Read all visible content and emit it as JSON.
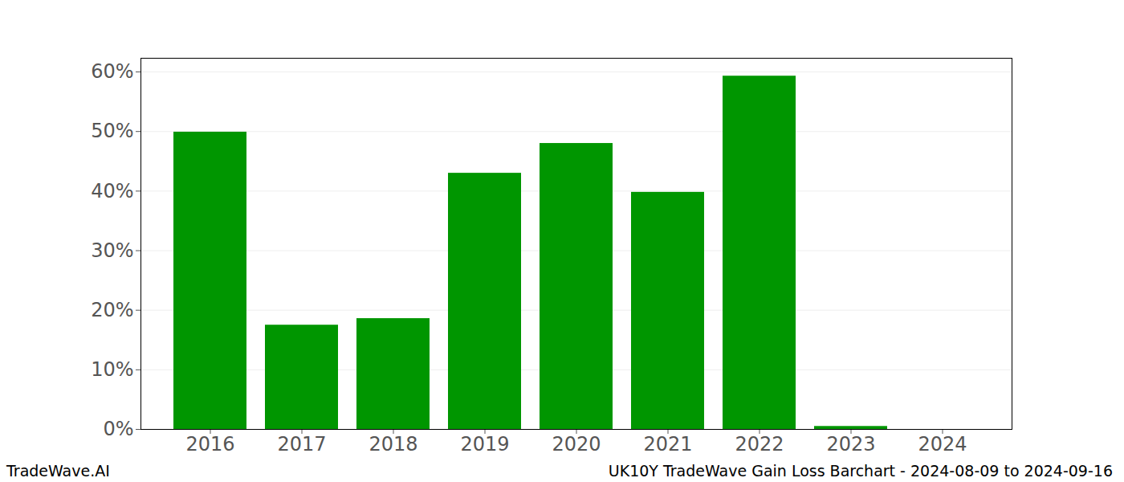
{
  "chart_data": {
    "type": "bar",
    "title": "UK10Y TradeWave Gain Loss Barchart - 2024-08-09 to 2024-09-16",
    "source": "TradeWave.AI",
    "categories": [
      "2016",
      "2017",
      "2018",
      "2019",
      "2020",
      "2021",
      "2022",
      "2023",
      "2024"
    ],
    "values": [
      49.9,
      17.5,
      18.6,
      43.0,
      48.0,
      39.8,
      59.3,
      0.5,
      0
    ],
    "color": "#009600",
    "ylim": [
      0,
      62.3
    ],
    "yticks": [
      {
        "value": 0,
        "label": "0%"
      },
      {
        "value": 10,
        "label": "10%"
      },
      {
        "value": 20,
        "label": "20%"
      },
      {
        "value": 30,
        "label": "30%"
      },
      {
        "value": 40,
        "label": "40%"
      },
      {
        "value": 50,
        "label": "50%"
      },
      {
        "value": 60,
        "label": "60%"
      }
    ],
    "grid": true
  }
}
